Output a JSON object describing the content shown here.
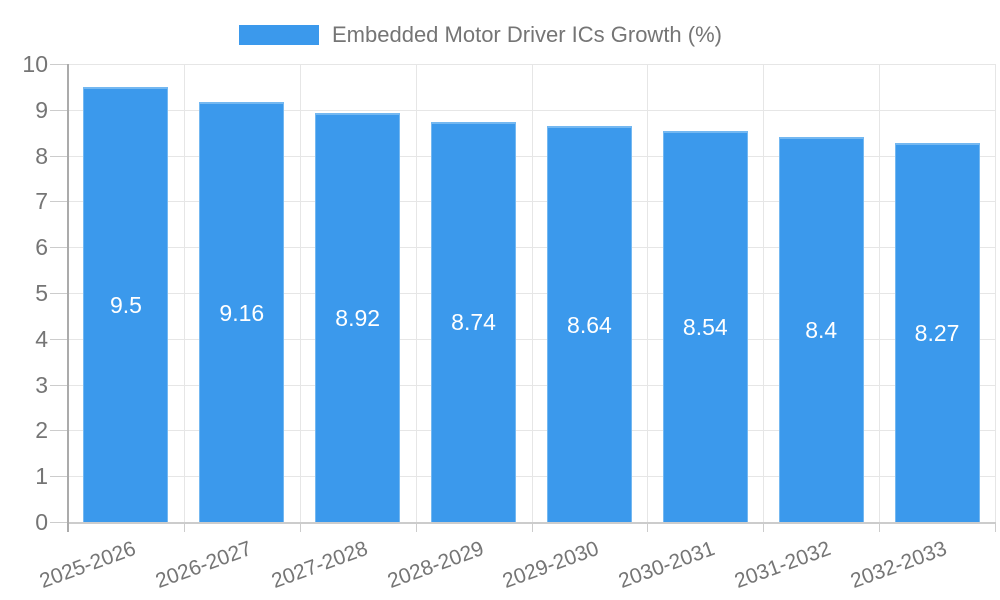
{
  "chart_data": {
    "type": "bar",
    "title": "Embedded Motor Driver ICs Growth (%)",
    "categories": [
      "2025-2026",
      "2026-2027",
      "2027-2028",
      "2028-2029",
      "2029-2030",
      "2030-2031",
      "2031-2032",
      "2032-2033"
    ],
    "values": [
      9.5,
      9.16,
      8.92,
      8.74,
      8.64,
      8.54,
      8.4,
      8.27
    ],
    "value_labels": [
      "9.5",
      "9.16",
      "8.92",
      "8.74",
      "8.64",
      "8.54",
      "8.4",
      "8.27"
    ],
    "xlabel": "",
    "ylabel": "",
    "ylim": [
      0,
      10
    ],
    "yticks": [
      0,
      1,
      2,
      3,
      4,
      5,
      6,
      7,
      8,
      9,
      10
    ],
    "grid": "both",
    "legend_position": "top-center",
    "colors": {
      "bar": "#3B99EC",
      "bar_edge": "#74B8F1",
      "grid": "#E6E6E6",
      "axis_line": "#ABABAB",
      "baseline": "#CCCCCC",
      "tick_line": "#CCCCCC",
      "axis_text": "#757575",
      "legend_text": "#757575",
      "value_text": "#FFFFFF",
      "background": "#FFFFFF"
    }
  }
}
